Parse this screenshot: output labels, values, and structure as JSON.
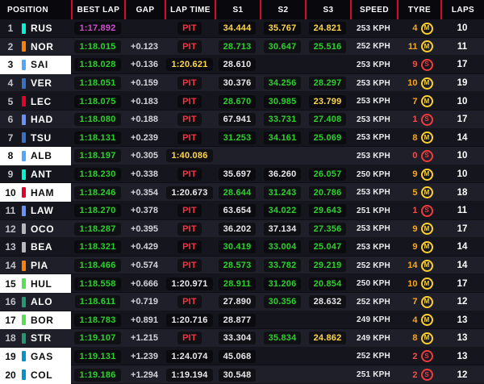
{
  "palette": {
    "green": "#2bd22b",
    "purple": "#d24dd2",
    "yellow": "#ffd747",
    "red": "#f63440",
    "white": "#e9e9e9",
    "amber": "#f7a824",
    "soft": "#f05050"
  },
  "tyre_compounds": {
    "M": "#ffd12e",
    "S": "#f23b3b"
  },
  "header": {
    "columns": [
      "POSITION",
      "BEST LAP",
      "GAP",
      "LAP TIME",
      "S1",
      "S2",
      "S3",
      "SPEED",
      "TYRE",
      "LAPS"
    ]
  },
  "rows": [
    {
      "pos": "1",
      "drv": "RUS",
      "team": "#00f5d0",
      "hl": false,
      "best": {
        "t": "1:17.892",
        "c": "purple"
      },
      "gap": "",
      "lap": {
        "t": "PIT",
        "c": "red"
      },
      "s1": {
        "t": "34.444",
        "c": "yellow"
      },
      "s2": {
        "t": "35.767",
        "c": "yellow"
      },
      "s3": {
        "t": "24.821",
        "c": "yellow"
      },
      "speed": "253 KPH",
      "tyre_age": "4",
      "compound": "M",
      "laps": "10"
    },
    {
      "pos": "2",
      "drv": "NOR",
      "team": "#ff8000",
      "hl": false,
      "best": {
        "t": "1:18.015",
        "c": "green"
      },
      "gap": "+0.123",
      "lap": {
        "t": "PIT",
        "c": "red"
      },
      "s1": {
        "t": "28.713",
        "c": "green"
      },
      "s2": {
        "t": "30.647",
        "c": "green"
      },
      "s3": {
        "t": "25.516",
        "c": "green"
      },
      "speed": "252 KPH",
      "tyre_age": "11",
      "compound": "M",
      "laps": "11"
    },
    {
      "pos": "3",
      "drv": "SAI",
      "team": "#4fa8ff",
      "hl": true,
      "best": {
        "t": "1:18.028",
        "c": "green"
      },
      "gap": "+0.136",
      "lap": {
        "t": "1:20.621",
        "c": "yellow"
      },
      "s1": {
        "t": "28.610",
        "c": "white"
      },
      "s2": null,
      "s3": null,
      "speed": "253 KPH",
      "tyre_age": "9",
      "compound": "S",
      "laps": "17"
    },
    {
      "pos": "4",
      "drv": "VER",
      "team": "#3671c6",
      "hl": false,
      "best": {
        "t": "1:18.051",
        "c": "green"
      },
      "gap": "+0.159",
      "lap": {
        "t": "PIT",
        "c": "red"
      },
      "s1": {
        "t": "30.376",
        "c": "white"
      },
      "s2": {
        "t": "34.256",
        "c": "green"
      },
      "s3": {
        "t": "28.297",
        "c": "green"
      },
      "speed": "253 KPH",
      "tyre_age": "10",
      "compound": "M",
      "laps": "19"
    },
    {
      "pos": "5",
      "drv": "LEC",
      "team": "#e8002d",
      "hl": false,
      "best": {
        "t": "1:18.075",
        "c": "green"
      },
      "gap": "+0.183",
      "lap": {
        "t": "PIT",
        "c": "red"
      },
      "s1": {
        "t": "28.670",
        "c": "green"
      },
      "s2": {
        "t": "30.985",
        "c": "green"
      },
      "s3": {
        "t": "23.799",
        "c": "yellow"
      },
      "speed": "253 KPH",
      "tyre_age": "7",
      "compound": "M",
      "laps": "10"
    },
    {
      "pos": "6",
      "drv": "HAD",
      "team": "#6692ff",
      "hl": false,
      "best": {
        "t": "1:18.080",
        "c": "green"
      },
      "gap": "+0.188",
      "lap": {
        "t": "PIT",
        "c": "red"
      },
      "s1": {
        "t": "67.941",
        "c": "white"
      },
      "s2": {
        "t": "33.731",
        "c": "green"
      },
      "s3": {
        "t": "27.408",
        "c": "green"
      },
      "speed": "253 KPH",
      "tyre_age": "1",
      "compound": "S",
      "laps": "17"
    },
    {
      "pos": "7",
      "drv": "TSU",
      "team": "#3671c6",
      "hl": false,
      "best": {
        "t": "1:18.131",
        "c": "green"
      },
      "gap": "+0.239",
      "lap": {
        "t": "PIT",
        "c": "red"
      },
      "s1": {
        "t": "31.253",
        "c": "green"
      },
      "s2": {
        "t": "34.161",
        "c": "green"
      },
      "s3": {
        "t": "25.069",
        "c": "green"
      },
      "speed": "253 KPH",
      "tyre_age": "8",
      "compound": "M",
      "laps": "14"
    },
    {
      "pos": "8",
      "drv": "ALB",
      "team": "#4fa8ff",
      "hl": true,
      "best": {
        "t": "1:18.197",
        "c": "green"
      },
      "gap": "+0.305",
      "lap": {
        "t": "1:40.086",
        "c": "yellow"
      },
      "s1": null,
      "s2": null,
      "s3": null,
      "speed": "253 KPH",
      "tyre_age": "0",
      "compound": "S",
      "laps": "10"
    },
    {
      "pos": "9",
      "drv": "ANT",
      "team": "#00f5d0",
      "hl": false,
      "best": {
        "t": "1:18.230",
        "c": "green"
      },
      "gap": "+0.338",
      "lap": {
        "t": "PIT",
        "c": "red"
      },
      "s1": {
        "t": "35.697",
        "c": "white"
      },
      "s2": {
        "t": "36.260",
        "c": "white"
      },
      "s3": {
        "t": "26.057",
        "c": "green"
      },
      "speed": "250 KPH",
      "tyre_age": "9",
      "compound": "M",
      "laps": "10"
    },
    {
      "pos": "10",
      "drv": "HAM",
      "team": "#e8002d",
      "hl": true,
      "best": {
        "t": "1:18.246",
        "c": "green"
      },
      "gap": "+0.354",
      "lap": {
        "t": "1:20.673",
        "c": "white"
      },
      "s1": {
        "t": "28.644",
        "c": "green"
      },
      "s2": {
        "t": "31.243",
        "c": "green"
      },
      "s3": {
        "t": "20.786",
        "c": "green"
      },
      "speed": "253 KPH",
      "tyre_age": "5",
      "compound": "M",
      "laps": "18"
    },
    {
      "pos": "11",
      "drv": "LAW",
      "team": "#6692ff",
      "hl": false,
      "best": {
        "t": "1:18.270",
        "c": "green"
      },
      "gap": "+0.378",
      "lap": {
        "t": "PIT",
        "c": "red"
      },
      "s1": {
        "t": "63.654",
        "c": "white"
      },
      "s2": {
        "t": "34.022",
        "c": "green"
      },
      "s3": {
        "t": "29.643",
        "c": "green"
      },
      "speed": "251 KPH",
      "tyre_age": "1",
      "compound": "S",
      "laps": "11"
    },
    {
      "pos": "12",
      "drv": "OCO",
      "team": "#b6babd",
      "hl": false,
      "best": {
        "t": "1:18.287",
        "c": "green"
      },
      "gap": "+0.395",
      "lap": {
        "t": "PIT",
        "c": "red"
      },
      "s1": {
        "t": "36.202",
        "c": "white"
      },
      "s2": {
        "t": "37.134",
        "c": "white"
      },
      "s3": {
        "t": "27.356",
        "c": "green"
      },
      "speed": "253 KPH",
      "tyre_age": "9",
      "compound": "M",
      "laps": "17"
    },
    {
      "pos": "13",
      "drv": "BEA",
      "team": "#b6babd",
      "hl": false,
      "best": {
        "t": "1:18.321",
        "c": "green"
      },
      "gap": "+0.429",
      "lap": {
        "t": "PIT",
        "c": "red"
      },
      "s1": {
        "t": "30.419",
        "c": "green"
      },
      "s2": {
        "t": "33.004",
        "c": "green"
      },
      "s3": {
        "t": "25.047",
        "c": "green"
      },
      "speed": "253 KPH",
      "tyre_age": "9",
      "compound": "M",
      "laps": "14"
    },
    {
      "pos": "14",
      "drv": "PIA",
      "team": "#ff8000",
      "hl": false,
      "best": {
        "t": "1:18.466",
        "c": "green"
      },
      "gap": "+0.574",
      "lap": {
        "t": "PIT",
        "c": "red"
      },
      "s1": {
        "t": "28.573",
        "c": "green"
      },
      "s2": {
        "t": "33.782",
        "c": "green"
      },
      "s3": {
        "t": "29.219",
        "c": "green"
      },
      "speed": "252 KPH",
      "tyre_age": "14",
      "compound": "M",
      "laps": "14"
    },
    {
      "pos": "15",
      "drv": "HUL",
      "team": "#52e252",
      "hl": true,
      "best": {
        "t": "1:18.558",
        "c": "green"
      },
      "gap": "+0.666",
      "lap": {
        "t": "1:20.971",
        "c": "white"
      },
      "s1": {
        "t": "28.911",
        "c": "green"
      },
      "s2": {
        "t": "31.206",
        "c": "green"
      },
      "s3": {
        "t": "20.854",
        "c": "green"
      },
      "speed": "250 KPH",
      "tyre_age": "10",
      "compound": "M",
      "laps": "17"
    },
    {
      "pos": "16",
      "drv": "ALO",
      "team": "#229971",
      "hl": false,
      "best": {
        "t": "1:18.611",
        "c": "green"
      },
      "gap": "+0.719",
      "lap": {
        "t": "PIT",
        "c": "red"
      },
      "s1": {
        "t": "27.890",
        "c": "white"
      },
      "s2": {
        "t": "30.356",
        "c": "green"
      },
      "s3": {
        "t": "28.632",
        "c": "white"
      },
      "speed": "252 KPH",
      "tyre_age": "7",
      "compound": "M",
      "laps": "12"
    },
    {
      "pos": "17",
      "drv": "BOR",
      "team": "#52e252",
      "hl": true,
      "best": {
        "t": "1:18.783",
        "c": "green"
      },
      "gap": "+0.891",
      "lap": {
        "t": "1:20.716",
        "c": "white"
      },
      "s1": {
        "t": "28.877",
        "c": "white"
      },
      "s2": null,
      "s3": null,
      "speed": "249 KPH",
      "tyre_age": "4",
      "compound": "M",
      "laps": "13"
    },
    {
      "pos": "18",
      "drv": "STR",
      "team": "#229971",
      "hl": false,
      "best": {
        "t": "1:19.107",
        "c": "green"
      },
      "gap": "+1.215",
      "lap": {
        "t": "PIT",
        "c": "red"
      },
      "s1": {
        "t": "33.304",
        "c": "white"
      },
      "s2": {
        "t": "35.834",
        "c": "green"
      },
      "s3": {
        "t": "24.862",
        "c": "yellow"
      },
      "speed": "249 KPH",
      "tyre_age": "8",
      "compound": "M",
      "laps": "13"
    },
    {
      "pos": "19",
      "drv": "GAS",
      "team": "#0093cc",
      "hl": true,
      "best": {
        "t": "1:19.131",
        "c": "green"
      },
      "gap": "+1.239",
      "lap": {
        "t": "1:24.074",
        "c": "white"
      },
      "s1": {
        "t": "45.068",
        "c": "white"
      },
      "s2": null,
      "s3": null,
      "speed": "252 KPH",
      "tyre_age": "2",
      "compound": "S",
      "laps": "13"
    },
    {
      "pos": "20",
      "drv": "COL",
      "team": "#0093cc",
      "hl": true,
      "best": {
        "t": "1:19.186",
        "c": "green"
      },
      "gap": "+1.294",
      "lap": {
        "t": "1:19.194",
        "c": "white"
      },
      "s1": {
        "t": "30.548",
        "c": "white"
      },
      "s2": null,
      "s3": null,
      "speed": "251 KPH",
      "tyre_age": "2",
      "compound": "S",
      "laps": "12"
    }
  ]
}
